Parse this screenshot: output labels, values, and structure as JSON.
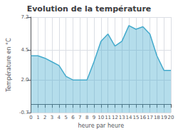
{
  "chart_data": {
    "type": "area",
    "title": "Evolution de la température",
    "xlabel": "heure par heure",
    "ylabel": "Température en °C",
    "x": [
      0,
      1,
      2,
      3,
      4,
      5,
      6,
      7,
      8,
      9,
      10,
      11,
      12,
      13,
      14,
      15,
      16,
      17,
      18,
      19,
      20
    ],
    "values": [
      4.0,
      4.0,
      3.8,
      3.5,
      3.2,
      2.3,
      2.0,
      2.0,
      2.0,
      3.5,
      5.2,
      5.8,
      4.8,
      5.2,
      6.5,
      6.2,
      6.4,
      5.8,
      4.0,
      2.8,
      2.8
    ],
    "color": "#44aacc",
    "xlim": [
      0,
      20
    ],
    "xticks": [
      0,
      1,
      2,
      3,
      4,
      5,
      6,
      7,
      8,
      9,
      10,
      11,
      12,
      13,
      14,
      15,
      16,
      17,
      18,
      19,
      20
    ],
    "ylim": [
      -0.7,
      7.2
    ],
    "yticks": [
      -0.7,
      {
        "value": 2.0,
        "label": "2.0"
      },
      4.5,
      7.2
    ],
    "grid": true
  }
}
